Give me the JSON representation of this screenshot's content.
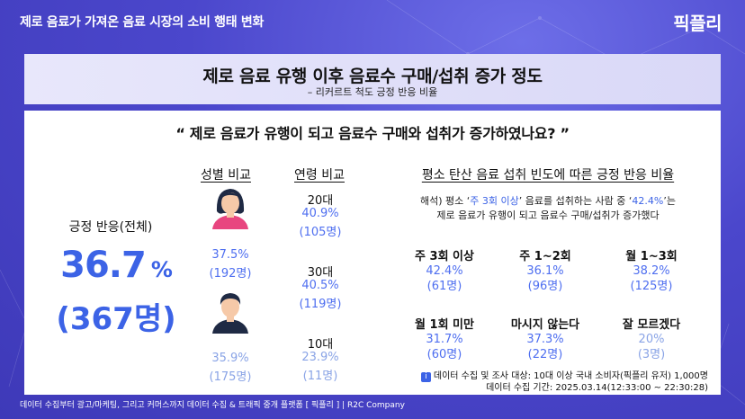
{
  "topbar": {
    "title": "제로 음료가 가져온 음료 시장의 소비 행태 변화",
    "logo": "픽플리"
  },
  "header": {
    "title": "제로 음료 유행 이후 음료수 구매/섭취 증가 정도",
    "subtitle": "– 리커르트 척도 긍정 반응 비율"
  },
  "question": "“ 제로 음료가 유행이 되고 음료수 구매와 섭취가 증가하였나요? ”",
  "total": {
    "label": "긍정 반응(전체)",
    "value": "36.7",
    "unit": "%",
    "count": "(367명)"
  },
  "gender": {
    "heading": "성별 비교",
    "female": {
      "pct": "37.5%",
      "count": "(192명)",
      "icon": "female-avatar-icon"
    },
    "male": {
      "pct": "35.9%",
      "count": "(175명)",
      "icon": "male-avatar-icon"
    }
  },
  "age": {
    "heading": "연령 비교",
    "groups": [
      {
        "label": "20대",
        "pct": "40.9%",
        "count": "(105명)"
      },
      {
        "label": "30대",
        "pct": "40.5%",
        "count": "(119명)"
      },
      {
        "label": "10대",
        "pct": "23.9%",
        "count": "(11명)"
      }
    ]
  },
  "frequency": {
    "heading": "평소 탄산 음료 섭취 빈도에 따른 긍정 반응 비율",
    "interp_prefix": "해석) 평소 ‘",
    "interp_hl1": "주 3회 이상",
    "interp_mid": "’ 음료를 섭취하는 사람 중 ‘",
    "interp_hl2": "42.4%",
    "interp_suffix": "’는",
    "interp_line2": "제로 음료가 유행이 되고 음료수 구매/섭취가 증가했다",
    "cells": [
      {
        "label": "주 3회 이상",
        "pct": "42.4%",
        "count": "(61명)"
      },
      {
        "label": "주 1~2회",
        "pct": "36.1%",
        "count": "(96명)"
      },
      {
        "label": "월 1~3회",
        "pct": "38.2%",
        "count": "(125명)"
      },
      {
        "label": "월 1회 미만",
        "pct": "31.7%",
        "count": "(60명)"
      },
      {
        "label": "마시지 않는다",
        "pct": "37.3%",
        "count": "(22명)"
      },
      {
        "label": "잘 모르겠다",
        "pct": "20%",
        "count": "(3명)"
      }
    ]
  },
  "note": {
    "line1": "데이터 수집 및 조사 대상: 10대 이상 국내 소비자(픽플리 유저) 1,000명",
    "line2": "데이터 수집 기간: 2025.03.14(12:33:00 ~ 22:30:28)"
  },
  "footer": "데이터 수집부터 광고/마케팅, 그리고 커머스까지 데이터 수집 & 트래픽 중개 플랫폼 [ 픽플리 ]  |  R2C Company",
  "colors": {
    "accent": "#3c63e6",
    "value_blue": "#4f6ff0",
    "muted_blue": "#8aa4e6",
    "background": "#4a47c8"
  }
}
